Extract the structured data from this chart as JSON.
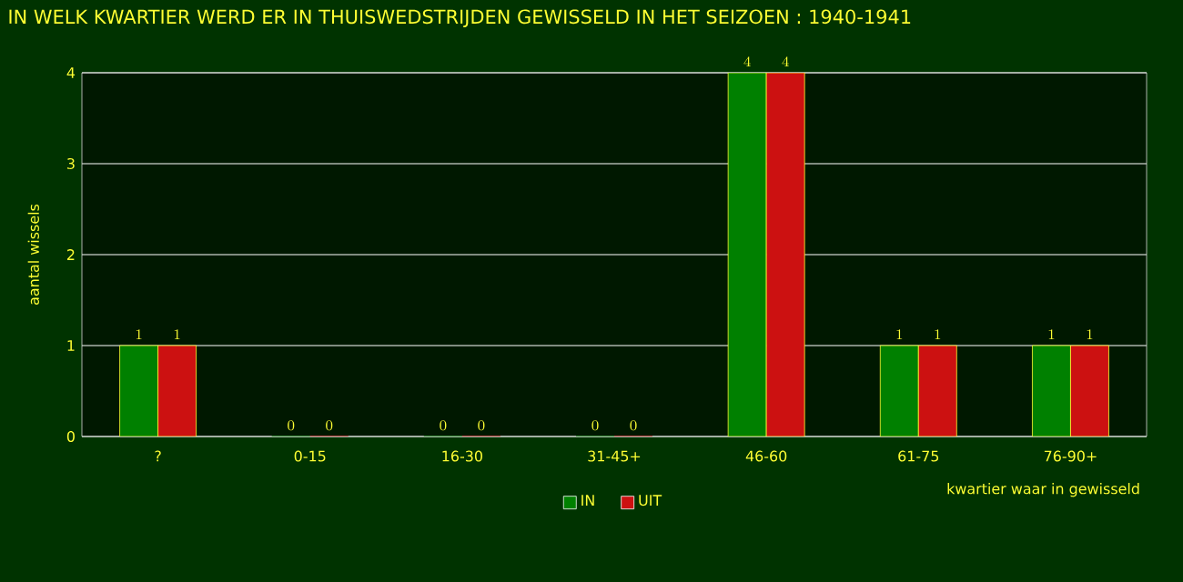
{
  "chart_data": {
    "type": "bar",
    "title": "IN WELK KWARTIER WERD ER IN THUISWEDSTRIJDEN GEWISSELD IN HET SEIZOEN : 1940-1941",
    "xlabel": "kwartier waar in gewisseld",
    "ylabel": "aantal wissels",
    "categories": [
      "?",
      "0-15",
      "16-30",
      "31-45+",
      "46-60",
      "61-75",
      "76-90+"
    ],
    "series": [
      {
        "name": "IN",
        "color": "#008000",
        "values": [
          1,
          0,
          0,
          0,
          4,
          1,
          1
        ]
      },
      {
        "name": "UIT",
        "color": "#cc1111",
        "values": [
          1,
          0,
          0,
          0,
          4,
          1,
          1
        ]
      }
    ],
    "ylim": [
      0,
      4
    ],
    "yticks": [
      0,
      1,
      2,
      3,
      4
    ],
    "grid": "y",
    "legend": "bottom",
    "data_labels": true
  }
}
